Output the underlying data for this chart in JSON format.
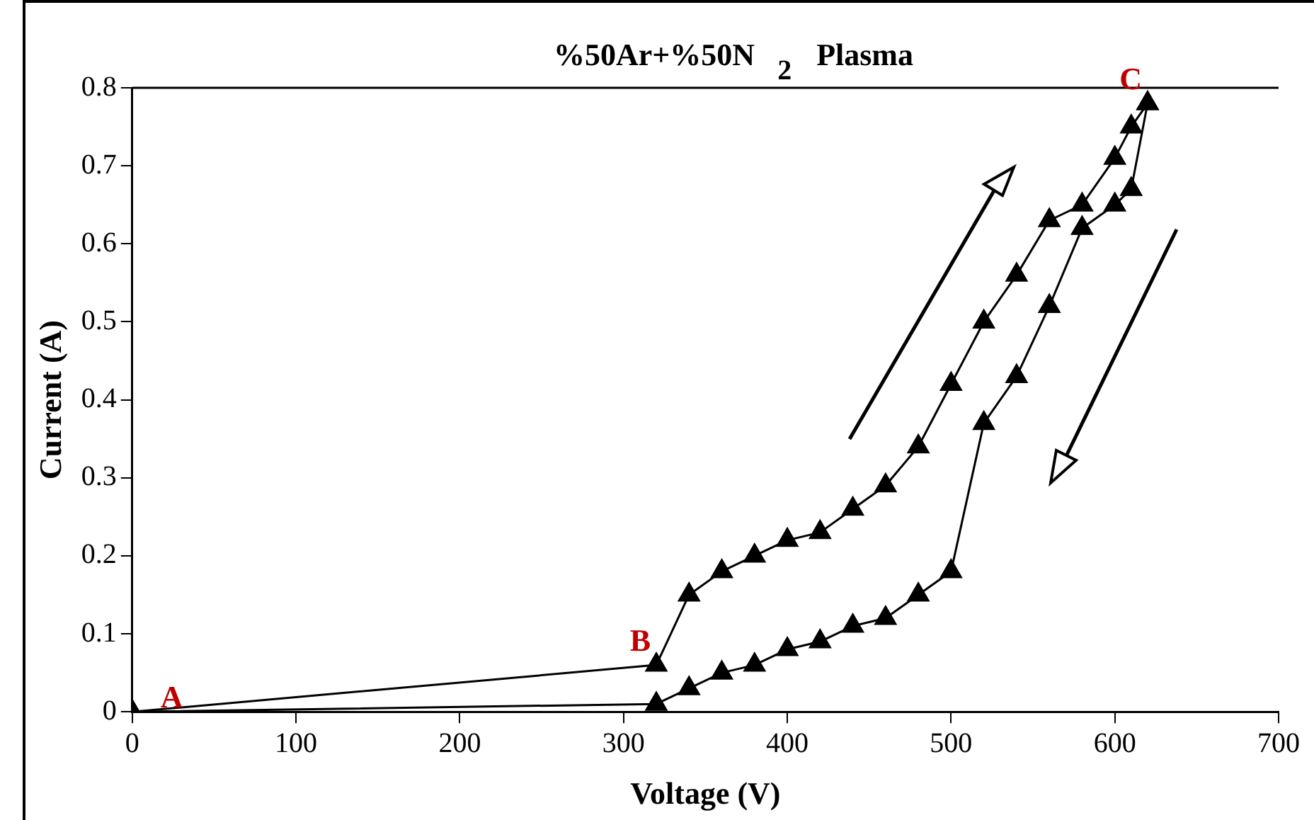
{
  "chart_data": {
    "type": "line",
    "title": "%50Ar+%50N$_{2}$ Plasma",
    "xlabel": "Voltage (V)",
    "ylabel": "Current (A)",
    "series": [
      {
        "color": "#000000",
        "x": [
          0,
          320,
          340,
          360,
          380,
          400,
          420,
          440,
          460,
          480,
          500,
          520,
          540,
          560,
          580,
          600,
          610,
          620
        ],
        "values": [
          0,
          0.06,
          0.15,
          0.18,
          0.2,
          0.22,
          0.23,
          0.26,
          0.29,
          0.34,
          0.42,
          0.5,
          0.56,
          0.63,
          0.65,
          0.71,
          0.75,
          0.78
        ]
      },
      {
        "color": "#000000",
        "x": [
          620,
          610,
          600,
          580,
          560,
          540,
          520,
          500,
          480,
          460,
          440,
          420,
          400,
          380,
          360,
          340,
          320,
          0
        ],
        "values": [
          0.78,
          0.67,
          0.65,
          0.62,
          0.52,
          0.43,
          0.37,
          0.18,
          0.15,
          0.12,
          0.11,
          0.09,
          0.08,
          0.06,
          0.05,
          0.03,
          0.01,
          0
        ]
      }
    ],
    "xlim": [
      0,
      700
    ],
    "xticks": [
      0,
      100,
      200,
      300,
      400,
      500,
      600,
      700
    ],
    "ylim": [
      0,
      0.8
    ],
    "yticks": [
      0,
      0.1,
      0.2,
      0.3,
      0.4,
      0.5,
      0.6,
      0.7,
      0.8
    ],
    "annotations": [
      {
        "text": "A",
        "x": 0,
        "y": 0
      },
      {
        "text": "B",
        "x": 320,
        "y": 0.06
      },
      {
        "text": "C",
        "x": 620,
        "y": 0.78
      }
    ],
    "marker": "triangle",
    "grid": false,
    "legend": false
  }
}
